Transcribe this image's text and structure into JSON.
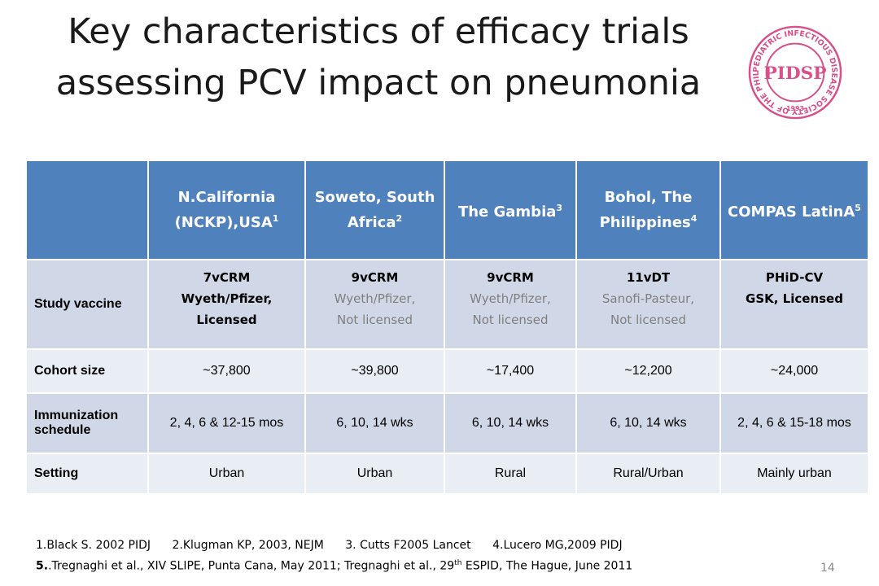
{
  "title": {
    "line1": "Key characteristics of efficacy trials",
    "line2": "assessing PCV impact on pneumonia"
  },
  "logo": {
    "text_top": "PEDIATRIC INFECTIOUS DISEASE SOCIETY OF THE PHILIPPINES",
    "mark": "PIDSP",
    "year": "1993",
    "color": "#d94f8a",
    "icon": "pidsp-seal-icon"
  },
  "table": {
    "header_color": "#4f81bd",
    "columns": [
      {
        "name": "N.California (NCKP),USA",
        "ref": "1"
      },
      {
        "name": "Soweto, South Africa",
        "ref": "2"
      },
      {
        "name": "The Gambia",
        "ref": "3"
      },
      {
        "name": "Bohol, The Philippines",
        "ref": "4"
      },
      {
        "name": "COMPAS LatinA",
        "ref": "5"
      }
    ],
    "rows": {
      "study_vaccine": {
        "label": "Study vaccine",
        "cells": [
          {
            "vaccine": "7vCRM",
            "manufacturer": "Wyeth/Pfizer,",
            "license": "Licensed"
          },
          {
            "vaccine": "9vCRM",
            "manufacturer": "Wyeth/Pfizer,",
            "license": "Not licensed"
          },
          {
            "vaccine": "9vCRM",
            "manufacturer": "Wyeth/Pfizer,",
            "license": "Not licensed"
          },
          {
            "vaccine": "11vDT",
            "manufacturer": "Sanofi-Pasteur,",
            "license": "Not licensed"
          },
          {
            "vaccine": "PHiD-CV",
            "manufacturer": "GSK, Licensed",
            "license": ""
          }
        ]
      },
      "cohort_size": {
        "label": "Cohort size",
        "cells": [
          "~37,800",
          "~39,800",
          "~17,400",
          "~12,200",
          "~24,000"
        ]
      },
      "schedule": {
        "label": "Immunization schedule",
        "cells": [
          "2, 4, 6 & 12-15 mos",
          "6, 10, 14 wks",
          "6, 10, 14 wks",
          "6, 10, 14 wks",
          "2, 4, 6 & 15-18 mos"
        ]
      },
      "setting": {
        "label": "Setting",
        "cells": [
          "Urban",
          "Urban",
          "Rural",
          "Rural/Urban",
          "Mainly urban"
        ]
      }
    }
  },
  "references": {
    "r1": "1.Black S. 2002 PIDJ",
    "r2": "2.Klugman KP, 2003, NEJM",
    "r3": "3. Cutts F2005 Lancet",
    "r4": "4.Lucero MG,2009 PIDJ",
    "r5_num": "5.",
    "r5_a": ".Tregnaghi et al., XIV SLIPE, Punta Cana, May 2011; Tregnaghi et al., 29",
    "r5_sup": "th",
    "r5_b": " ESPID, The Hague, June 2011"
  },
  "page_number": "14"
}
